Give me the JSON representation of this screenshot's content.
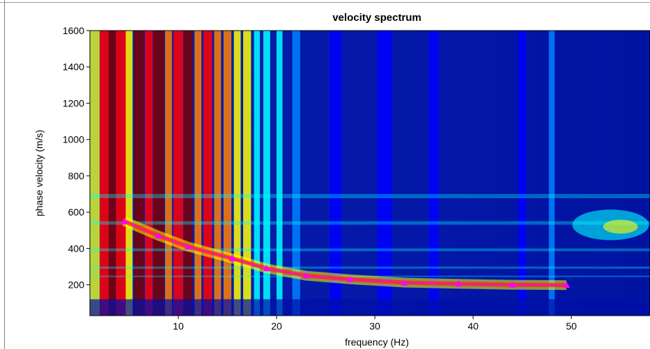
{
  "chart_data": {
    "type": "heatmap",
    "title": "velocity spectrum",
    "xlabel": "frequency (Hz)",
    "ylabel": "phase velocity (m/s)",
    "xlim": [
      1,
      58
    ],
    "ylim": [
      30,
      1600
    ],
    "x_ticks": [
      "10",
      "20",
      "30",
      "40",
      "50"
    ],
    "y_ticks": [
      "200",
      "400",
      "600",
      "800",
      "1000",
      "1200",
      "1400",
      "1600"
    ],
    "colormap": [
      "#00007a",
      "#0000ff",
      "#0080ff",
      "#00ffff",
      "#ffff00",
      "#ff8000",
      "#ff0000",
      "#7a0000"
    ],
    "dispersion_curve": {
      "color": "#ff00ff",
      "x": [
        4.5,
        8,
        11,
        15.5,
        19,
        23,
        27.5,
        33,
        38.5,
        44,
        49.5
      ],
      "y": [
        550,
        470,
        410,
        345,
        290,
        250,
        230,
        212,
        205,
        200,
        198
      ]
    }
  }
}
